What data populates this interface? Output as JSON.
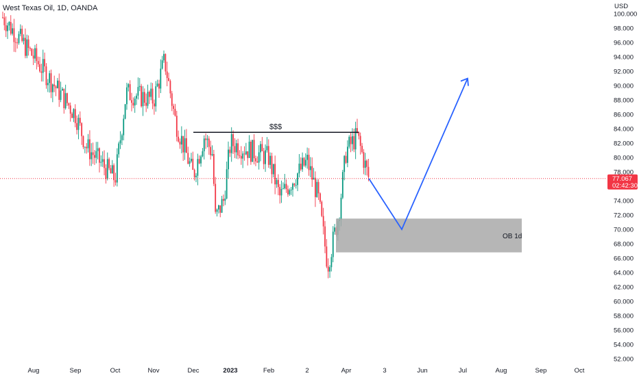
{
  "header": {
    "symbol_title": "West Texas Oil, 1D, OANDA",
    "currency": "USD"
  },
  "price_tag": {
    "price": "77.067",
    "countdown": "02:42:30",
    "color": "#f23645"
  },
  "colors": {
    "up": "#089981",
    "down": "#f23645",
    "projection": "#2962ff",
    "zone": "#a9a9a9",
    "price_line": "#f23645"
  },
  "chart_data": {
    "type": "candlestick",
    "title": "West Texas Oil, 1D, OANDA",
    "y_axis": {
      "unit": "USD",
      "min": 52,
      "max": 100,
      "ticks": [
        "100.000",
        "98.000",
        "96.000",
        "94.000",
        "92.000",
        "90.000",
        "88.000",
        "86.000",
        "84.000",
        "82.000",
        "80.000",
        "78.000",
        "76.000",
        "74.000",
        "72.000",
        "70.000",
        "68.000",
        "66.000",
        "64.000",
        "62.000",
        "60.000",
        "58.000",
        "56.000",
        "54.000",
        "52.000"
      ]
    },
    "x_axis": {
      "ticks": [
        "Aug",
        "Sep",
        "Oct",
        "Nov",
        "Dec",
        "2023",
        "Feb",
        "2",
        "Apr",
        "3",
        "Jun",
        "Jul",
        "Aug",
        "Sep",
        "Oct"
      ],
      "bold_ticks": [
        "2023"
      ]
    },
    "grid": false,
    "price_path_approx": [
      [
        "Jul",
        99.5
      ],
      [
        "Aug",
        94.0
      ],
      [
        "Sep",
        86.0
      ],
      [
        "Sep",
        81.5
      ],
      [
        "Oct",
        77.0
      ],
      [
        "Oct",
        89.0
      ],
      [
        "Nov",
        88.0
      ],
      [
        "Nov",
        93.5
      ],
      [
        "Nov",
        85.0
      ],
      [
        "Dec",
        77.5
      ],
      [
        "Dec",
        83.0
      ],
      [
        "Dec",
        71.5
      ],
      [
        "Jan",
        80.5
      ],
      [
        "2023",
        82.0
      ],
      [
        "Jan",
        74.0
      ],
      [
        "Feb",
        80.0
      ],
      [
        "Feb",
        74.5
      ],
      [
        "2",
        79.5
      ],
      [
        "2",
        74.5
      ],
      [
        "Mar",
        65.0
      ],
      [
        "Mar",
        72.0
      ],
      [
        "Apr",
        81.0
      ],
      [
        "Apr",
        83.0
      ],
      [
        "Apr",
        77.067
      ]
    ],
    "last_price": 77.067,
    "annotations": {
      "liquidity_line": {
        "label": "$$$",
        "price": 83.5
      },
      "order_block": {
        "label": "OB 1d",
        "price_top": 71.5,
        "price_bottom": 66.8
      },
      "projection": {
        "points": [
          77.067,
          70.0,
          91.0
        ]
      }
    }
  }
}
